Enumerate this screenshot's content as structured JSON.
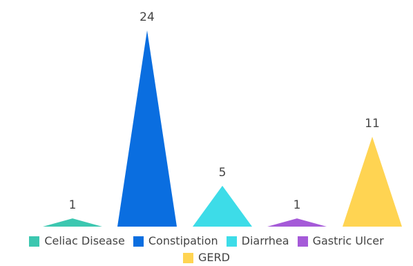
{
  "chart_data": {
    "type": "bar",
    "mark_shape": "triangle",
    "categories": [
      "Celiac Disease",
      "Constipation",
      "Diarrhea",
      "Gastric Ulcer",
      "GERD"
    ],
    "values": [
      1,
      24,
      5,
      1,
      11
    ],
    "colors": [
      "#3cc7b0",
      "#0a6ee0",
      "#3ddce8",
      "#a55ad8",
      "#ffd452"
    ],
    "ylim": [
      0,
      24
    ],
    "data_labels": [
      "1",
      "24",
      "5",
      "1",
      "11"
    ],
    "legend": {
      "position": "bottom",
      "items": [
        {
          "label": "Celiac Disease",
          "color": "#3cc7b0"
        },
        {
          "label": "Constipation",
          "color": "#0a6ee0"
        },
        {
          "label": "Diarrhea",
          "color": "#3ddce8"
        },
        {
          "label": "Gastric Ulcer",
          "color": "#a55ad8"
        },
        {
          "label": "GERD",
          "color": "#ffd452"
        }
      ]
    },
    "grid": false
  }
}
